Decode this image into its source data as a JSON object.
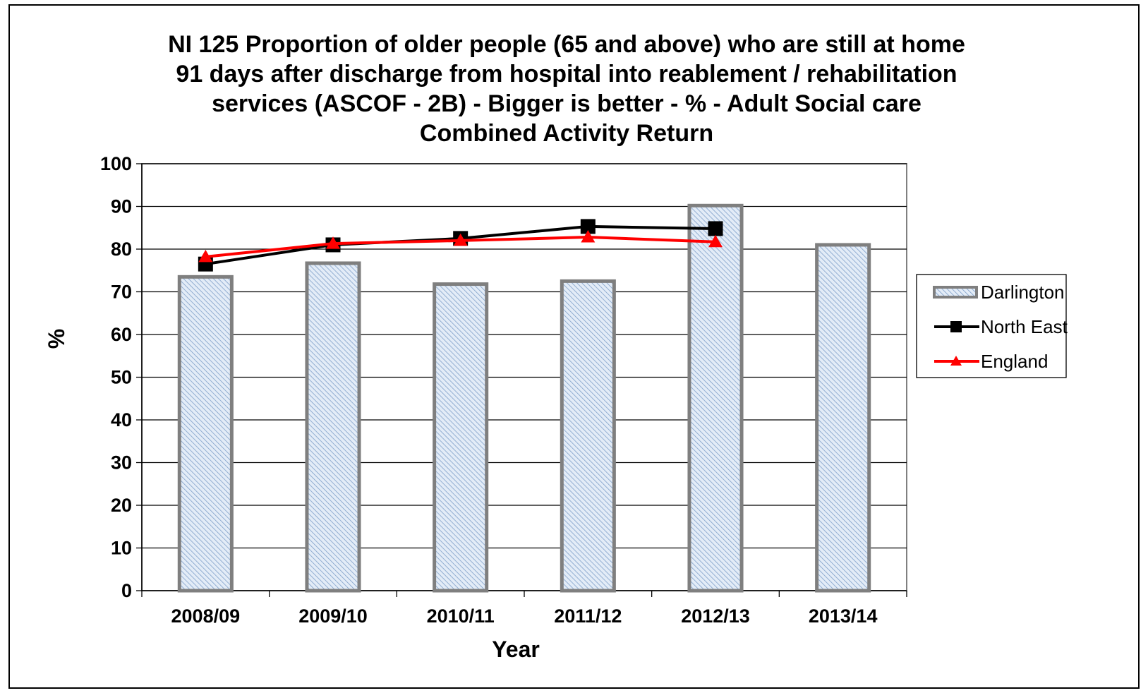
{
  "chart_data": {
    "type": "bar",
    "title_lines": [
      "NI 125 Proportion of older people (65 and above) who are still at home",
      "91 days after discharge from hospital into reablement / rehabilitation",
      "services (ASCOF - 2B) - Bigger is better  - %  - Adult Social care",
      "Combined Activity Return"
    ],
    "xlabel": "Year",
    "ylabel": "%",
    "ylim": [
      0,
      100
    ],
    "yticks": [
      0,
      10,
      20,
      30,
      40,
      50,
      60,
      70,
      80,
      90,
      100
    ],
    "categories": [
      "2008/09",
      "2009/10",
      "2010/11",
      "2011/12",
      "2012/13",
      "2013/14"
    ],
    "grid": true,
    "legend_position": "right",
    "series": [
      {
        "name": "Darlington",
        "kind": "bar",
        "color": "#c9d9ee",
        "values": [
          73.5,
          76.7,
          71.8,
          72.5,
          90.2,
          81.0
        ]
      },
      {
        "name": "North East",
        "kind": "line",
        "marker": "square",
        "color": "#000000",
        "values": [
          76.5,
          81.0,
          82.5,
          85.3,
          84.8,
          null
        ]
      },
      {
        "name": "England",
        "kind": "line",
        "marker": "triangle",
        "color": "#ff0000",
        "values": [
          78.2,
          81.3,
          82.0,
          82.8,
          81.7,
          null
        ]
      }
    ]
  }
}
